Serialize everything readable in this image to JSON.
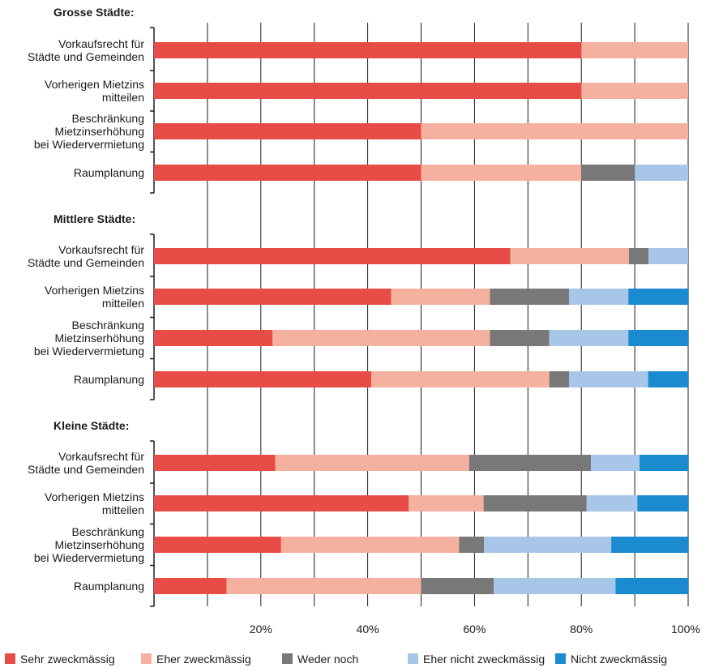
{
  "chart_data": {
    "type": "bar",
    "orientation": "horizontal",
    "stacked": true,
    "xlim": [
      0,
      100
    ],
    "x_ticks": [
      "20%",
      "40%",
      "60%",
      "80%",
      "100%"
    ],
    "gridlines": "vertical",
    "legend_position": "bottom",
    "segment_names": [
      "Sehr zweckmässig",
      "Eher zweckmässig",
      "Weder noch",
      "Eher nicht zweckmässig",
      "Nicht zweckmässig"
    ],
    "colors": [
      "#e84c47",
      "#f5b19f",
      "#787878",
      "#a7c6e8",
      "#1b8bd0"
    ],
    "panels": [
      {
        "title": "Grosse Städte:",
        "bars": [
          {
            "label": [
              "Vorkaufsrecht für",
              "Städte und Gemeinden"
            ],
            "values": [
              80,
              20,
              0,
              0,
              0
            ]
          },
          {
            "label": [
              "Vorherigen Mietzins",
              "mitteilen"
            ],
            "values": [
              80,
              20,
              0,
              0,
              0
            ]
          },
          {
            "label": [
              "Beschränkung",
              "Mietzinserhöhung",
              "bei Wiedervermietung"
            ],
            "values": [
              50,
              50,
              0,
              0,
              0
            ]
          },
          {
            "label": [
              "Raumplanung"
            ],
            "values": [
              50,
              30,
              10,
              10,
              0
            ]
          }
        ]
      },
      {
        "title": "Mittlere Städte:",
        "bars": [
          {
            "label": [
              "Vorkaufsrecht für",
              "Städte und Gemeinden"
            ],
            "values": [
              66.7,
              22.2,
              3.7,
              7.4,
              0
            ]
          },
          {
            "label": [
              "Vorherigen Mietzins",
              "mitteilen"
            ],
            "values": [
              44.4,
              18.5,
              14.8,
              11.1,
              11.2
            ]
          },
          {
            "label": [
              "Beschränkung",
              "Mietzinserhöhung",
              "bei Wiedervermietung"
            ],
            "values": [
              22.2,
              40.7,
              11.1,
              14.8,
              11.2
            ]
          },
          {
            "label": [
              "Raumplanung"
            ],
            "values": [
              40.7,
              33.3,
              3.7,
              14.8,
              7.5
            ]
          }
        ]
      },
      {
        "title": "Kleine Städte:",
        "bars": [
          {
            "label": [
              "Vorkaufsrecht für",
              "Städte und Gemeinden"
            ],
            "values": [
              22.7,
              36.3,
              22.8,
              9.1,
              9.1
            ]
          },
          {
            "label": [
              "Vorherigen Mietzins",
              "mitteilen"
            ],
            "values": [
              47.7,
              14.0,
              19.3,
              9.5,
              9.5
            ]
          },
          {
            "label": [
              "Beschränkung",
              "Mietzinserhöhung",
              "bei Wiedervermietung"
            ],
            "values": [
              23.8,
              33.3,
              4.7,
              23.8,
              14.4
            ]
          },
          {
            "label": [
              "Raumplanung"
            ],
            "values": [
              13.6,
              36.4,
              13.6,
              22.8,
              13.6
            ]
          }
        ]
      }
    ]
  }
}
